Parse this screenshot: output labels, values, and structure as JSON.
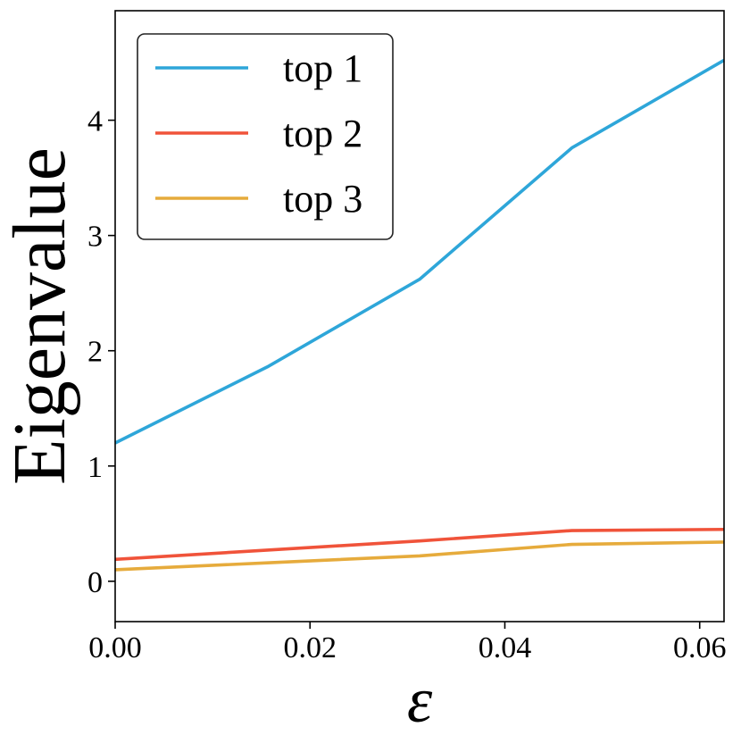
{
  "chart_data": {
    "type": "line",
    "title": "",
    "xlabel": "ε",
    "ylabel": "Eigenvalue",
    "xlim": [
      0.0,
      0.0625
    ],
    "ylim": [
      -0.35,
      4.95
    ],
    "xticks": [
      0.0,
      0.02,
      0.04,
      0.06
    ],
    "xtick_labels": [
      "0.00",
      "0.02",
      "0.04",
      "0.06"
    ],
    "yticks": [
      0,
      1,
      2,
      3,
      4
    ],
    "ytick_labels": [
      "0",
      "1",
      "2",
      "3",
      "4"
    ],
    "grid": false,
    "legend_position": "top-left",
    "x": [
      0.0,
      0.015625,
      0.03125,
      0.046875,
      0.0625
    ],
    "series": [
      {
        "name": "top 1",
        "color": "#2ea6d9",
        "values": [
          1.2,
          1.86,
          2.62,
          3.76,
          4.52
        ]
      },
      {
        "name": "top 2",
        "color": "#f0533a",
        "values": [
          0.19,
          0.27,
          0.35,
          0.44,
          0.45
        ]
      },
      {
        "name": "top 3",
        "color": "#e6ab3c",
        "values": [
          0.1,
          0.16,
          0.22,
          0.32,
          0.34
        ]
      }
    ]
  }
}
